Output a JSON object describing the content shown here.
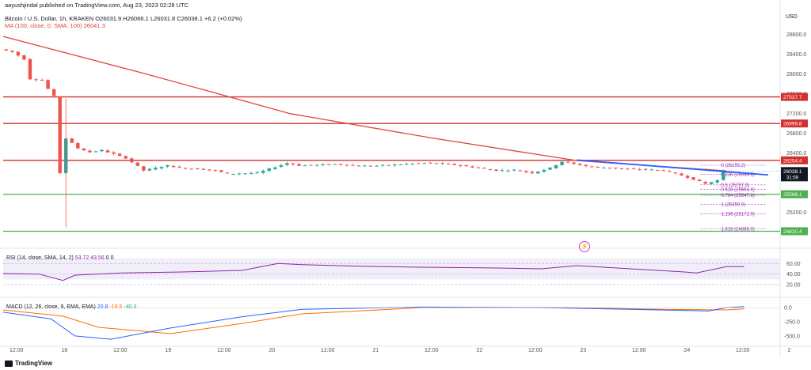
{
  "header": {
    "published": "aayushjindal published on TradingView.com, Aug 23, 2023 02:28 UTC",
    "symbol": "Bitcoin / U.S. Dollar, 1h, KRAKEN",
    "open_label": "O",
    "open": "26031.9",
    "high_label": "H",
    "high": "26066.1",
    "low_label": "L",
    "low": "26031.8",
    "close_label": "C",
    "close": "26038.1",
    "change": "+6.2 (+0.02%)",
    "ma_label": "MA (100, close, 0, SMA, 100)",
    "ma_value": "26041.3"
  },
  "currency": "USD",
  "rsi_header": {
    "label": "RSI (14, close, SMA, 14, 2)",
    "v1": "53.72",
    "v2": "43.56",
    "v3": "0",
    "v4": "0"
  },
  "macd_header": {
    "label": "MACD (12, 26, close, 9, EMA, EMA)",
    "v1": "20.8",
    "v2": "-19.5",
    "v3": "-40.3"
  },
  "footer_logo": "TradingView",
  "colors": {
    "up": "#26a69a",
    "down": "#ef5350",
    "ma": "#e0443f",
    "trend": "#2962ff",
    "support": "#4caf50",
    "resistance": "#d32f2f",
    "rsi": "#8e24aa",
    "macd": "#2962ff",
    "signal": "#ff6d00",
    "fib": "#9c27b0"
  },
  "chart_data": {
    "type": "candlestick",
    "x_ticks": [
      "12:00",
      "18",
      "12:00",
      "19",
      "12:00",
      "20",
      "12:00",
      "21",
      "12:00",
      "22",
      "12:00",
      "23",
      "12:00",
      "24",
      "12:00",
      "2"
    ],
    "y_ticks": [
      28800,
      28400,
      28000,
      27600,
      27200,
      26800,
      26400,
      25600,
      25200
    ],
    "ylim": [
      24700,
      29050
    ],
    "price_points": [
      [
        0,
        28500
      ],
      [
        2,
        28450
      ],
      [
        4,
        28300
      ],
      [
        5,
        27900
      ],
      [
        7,
        27880
      ],
      [
        8,
        27700
      ],
      [
        9,
        27550
      ],
      [
        10,
        26000
      ],
      [
        11,
        26700
      ],
      [
        12,
        26600
      ],
      [
        13,
        26500
      ],
      [
        15,
        26420
      ],
      [
        17,
        26460
      ],
      [
        19,
        26380
      ],
      [
        21,
        26300
      ],
      [
        24,
        26050
      ],
      [
        26,
        26100
      ],
      [
        28,
        26150
      ],
      [
        30,
        26100
      ],
      [
        33,
        26080
      ],
      [
        36,
        26050
      ],
      [
        38,
        25980
      ],
      [
        40,
        25990
      ],
      [
        43,
        26000
      ],
      [
        46,
        26120
      ],
      [
        48,
        26200
      ],
      [
        50,
        26150
      ],
      [
        53,
        26160
      ],
      [
        56,
        26180
      ],
      [
        59,
        26150
      ],
      [
        62,
        26140
      ],
      [
        65,
        26160
      ],
      [
        68,
        26180
      ],
      [
        71,
        26200
      ],
      [
        74,
        26190
      ],
      [
        77,
        26150
      ],
      [
        80,
        26100
      ],
      [
        83,
        26050
      ],
      [
        86,
        26060
      ],
      [
        89,
        26000
      ],
      [
        92,
        26100
      ],
      [
        94,
        26230
      ],
      [
        96,
        26180
      ],
      [
        99,
        26120
      ],
      [
        102,
        26100
      ],
      [
        105,
        26080
      ],
      [
        108,
        26070
      ],
      [
        111,
        26050
      ],
      [
        114,
        25950
      ],
      [
        116,
        25870
      ],
      [
        118,
        25780
      ],
      [
        120,
        25850
      ],
      [
        121,
        26038
      ]
    ],
    "ma_points": [
      [
        0,
        28760
      ],
      [
        24,
        28000
      ],
      [
        48,
        27200
      ],
      [
        72,
        26700
      ],
      [
        96,
        26250
      ],
      [
        121,
        26041
      ]
    ],
    "trend_line": [
      [
        96,
        26260
      ],
      [
        128,
        25960
      ]
    ],
    "horizontal_levels": [
      {
        "value": 27537.7,
        "label": "27537.7",
        "color": "#d32f2f"
      },
      {
        "value": 26999.8,
        "label": "26999.8",
        "color": "#d32f2f"
      },
      {
        "value": 26254.4,
        "label": "26254.4",
        "color": "#d32f2f"
      },
      {
        "value": 25568.1,
        "label": "25568.1",
        "color": "#4caf50"
      },
      {
        "value": 24820.4,
        "label": "24820.4",
        "color": "#4caf50"
      }
    ],
    "last_price": {
      "value": 26038.1,
      "label": "26038.1",
      "sub": "31:59"
    },
    "fib_levels": [
      {
        "ratio": "0",
        "value": 26155.2
      },
      {
        "ratio": "0.236",
        "value": 25968.0
      },
      {
        "ratio": "0.5",
        "value": 25757.9
      },
      {
        "ratio": "0.618",
        "value": 25664.4
      },
      {
        "ratio": "0.764",
        "value": 25547.8
      },
      {
        "ratio": "1",
        "value": 25359.9
      },
      {
        "ratio": "1.236",
        "value": 25172.0
      },
      {
        "ratio": "1.618",
        "value": 24868.0
      }
    ],
    "rsi": {
      "ylim": [
        20,
        80
      ],
      "ticks": [
        60,
        40,
        20
      ],
      "band": [
        30,
        70
      ],
      "points": [
        [
          0,
          41
        ],
        [
          6,
          40
        ],
        [
          10,
          28
        ],
        [
          12,
          38
        ],
        [
          20,
          42
        ],
        [
          30,
          44
        ],
        [
          40,
          47
        ],
        [
          46,
          60
        ],
        [
          50,
          58
        ],
        [
          60,
          55
        ],
        [
          70,
          53
        ],
        [
          80,
          52
        ],
        [
          90,
          50
        ],
        [
          96,
          56
        ],
        [
          105,
          50
        ],
        [
          114,
          44
        ],
        [
          116,
          42
        ],
        [
          121,
          54
        ],
        [
          124,
          54
        ]
      ]
    },
    "macd": {
      "ylim": [
        -600,
        100
      ],
      "ticks": [
        0.0,
        -250.0,
        -500.0
      ],
      "macd_points": [
        [
          0,
          -80
        ],
        [
          8,
          -200
        ],
        [
          12,
          -500
        ],
        [
          18,
          -560
        ],
        [
          28,
          -360
        ],
        [
          40,
          -160
        ],
        [
          50,
          -30
        ],
        [
          70,
          10
        ],
        [
          90,
          0
        ],
        [
          105,
          -30
        ],
        [
          118,
          -60
        ],
        [
          121,
          0
        ],
        [
          124,
          20
        ]
      ],
      "signal_points": [
        [
          0,
          -40
        ],
        [
          10,
          -150
        ],
        [
          16,
          -350
        ],
        [
          28,
          -460
        ],
        [
          40,
          -280
        ],
        [
          50,
          -110
        ],
        [
          70,
          0
        ],
        [
          95,
          0
        ],
        [
          110,
          -30
        ],
        [
          121,
          -40
        ],
        [
          124,
          -20
        ]
      ]
    }
  }
}
